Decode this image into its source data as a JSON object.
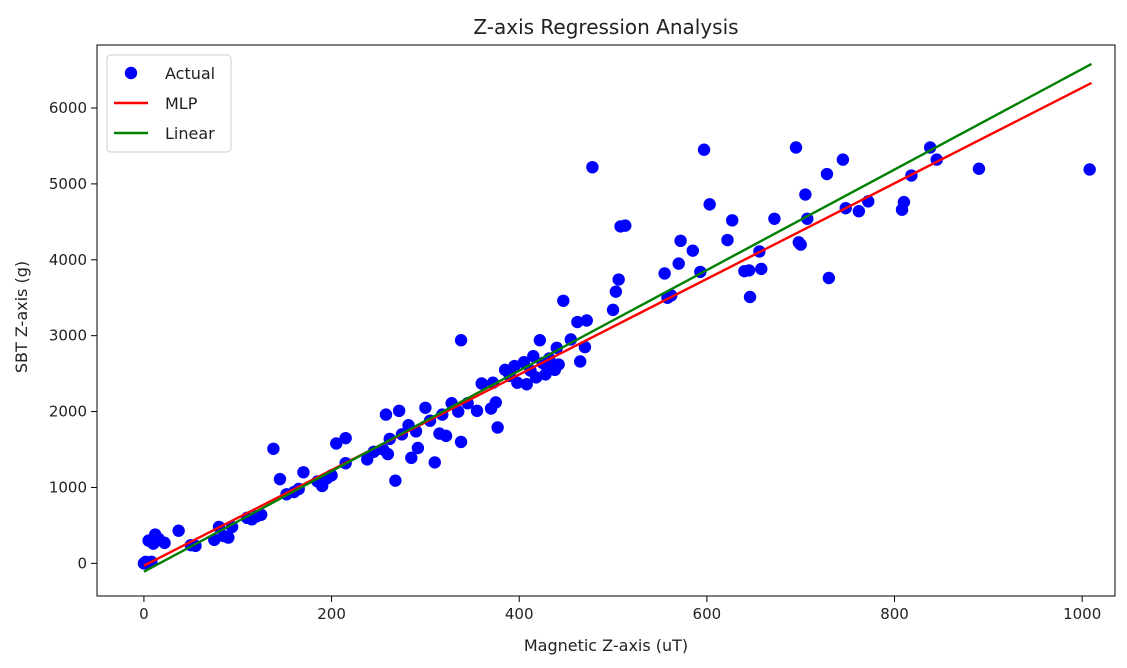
{
  "chart_data": {
    "type": "scatter",
    "title": "Z-axis Regression Analysis",
    "xlabel": "Magnetic Z-axis (uT)",
    "ylabel": "SBT Z-axis (g)",
    "xlim": [
      -50,
      1035
    ],
    "ylim": [
      -430,
      6830
    ],
    "xticks": [
      0,
      200,
      400,
      600,
      800,
      1000
    ],
    "yticks": [
      0,
      1000,
      2000,
      3000,
      4000,
      5000,
      6000
    ],
    "grid": false,
    "legend": "top-left",
    "series": [
      {
        "name": "Actual",
        "kind": "scatter",
        "color": "#0000ff",
        "points": [
          [
            0,
            0
          ],
          [
            2,
            20
          ],
          [
            4,
            10
          ],
          [
            5,
            300
          ],
          [
            8,
            20
          ],
          [
            10,
            260
          ],
          [
            12,
            380
          ],
          [
            16,
            320
          ],
          [
            22,
            270
          ],
          [
            37,
            430
          ],
          [
            50,
            240
          ],
          [
            55,
            230
          ],
          [
            75,
            310
          ],
          [
            80,
            480
          ],
          [
            85,
            360
          ],
          [
            90,
            340
          ],
          [
            94,
            480
          ],
          [
            110,
            600
          ],
          [
            115,
            580
          ],
          [
            120,
            620
          ],
          [
            125,
            640
          ],
          [
            138,
            1510
          ],
          [
            145,
            1110
          ],
          [
            152,
            910
          ],
          [
            160,
            940
          ],
          [
            165,
            980
          ],
          [
            170,
            1200
          ],
          [
            185,
            1080
          ],
          [
            190,
            1020
          ],
          [
            195,
            1120
          ],
          [
            200,
            1160
          ],
          [
            205,
            1580
          ],
          [
            215,
            1650
          ],
          [
            215,
            1320
          ],
          [
            238,
            1370
          ],
          [
            245,
            1470
          ],
          [
            255,
            1500
          ],
          [
            258,
            1960
          ],
          [
            260,
            1440
          ],
          [
            262,
            1640
          ],
          [
            268,
            1090
          ],
          [
            272,
            2010
          ],
          [
            275,
            1700
          ],
          [
            282,
            1820
          ],
          [
            285,
            1390
          ],
          [
            290,
            1740
          ],
          [
            292,
            1520
          ],
          [
            300,
            2050
          ],
          [
            305,
            1880
          ],
          [
            310,
            1330
          ],
          [
            315,
            1710
          ],
          [
            318,
            1960
          ],
          [
            322,
            1680
          ],
          [
            328,
            2110
          ],
          [
            335,
            2000
          ],
          [
            338,
            2940
          ],
          [
            338,
            1600
          ],
          [
            345,
            2110
          ],
          [
            355,
            2010
          ],
          [
            360,
            2370
          ],
          [
            370,
            2040
          ],
          [
            372,
            2380
          ],
          [
            375,
            2120
          ],
          [
            377,
            1790
          ],
          [
            385,
            2550
          ],
          [
            390,
            2470
          ],
          [
            395,
            2600
          ],
          [
            398,
            2380
          ],
          [
            405,
            2650
          ],
          [
            408,
            2360
          ],
          [
            412,
            2540
          ],
          [
            415,
            2730
          ],
          [
            418,
            2450
          ],
          [
            422,
            2940
          ],
          [
            425,
            2640
          ],
          [
            428,
            2490
          ],
          [
            432,
            2700
          ],
          [
            435,
            2600
          ],
          [
            438,
            2550
          ],
          [
            440,
            2840
          ],
          [
            442,
            2620
          ],
          [
            447,
            3460
          ],
          [
            455,
            2950
          ],
          [
            462,
            3180
          ],
          [
            465,
            2660
          ],
          [
            470,
            2850
          ],
          [
            472,
            3200
          ],
          [
            478,
            5220
          ],
          [
            500,
            3340
          ],
          [
            503,
            3580
          ],
          [
            506,
            3740
          ],
          [
            508,
            4440
          ],
          [
            513,
            4450
          ],
          [
            555,
            3820
          ],
          [
            558,
            3500
          ],
          [
            562,
            3530
          ],
          [
            570,
            3950
          ],
          [
            572,
            4250
          ],
          [
            585,
            4120
          ],
          [
            593,
            3840
          ],
          [
            597,
            5450
          ],
          [
            603,
            4730
          ],
          [
            622,
            4260
          ],
          [
            627,
            4520
          ],
          [
            640,
            3850
          ],
          [
            645,
            3860
          ],
          [
            646,
            3510
          ],
          [
            656,
            4110
          ],
          [
            658,
            3880
          ],
          [
            672,
            4540
          ],
          [
            695,
            5480
          ],
          [
            698,
            4230
          ],
          [
            700,
            4200
          ],
          [
            705,
            4860
          ],
          [
            707,
            4540
          ],
          [
            728,
            5130
          ],
          [
            730,
            3760
          ],
          [
            745,
            5320
          ],
          [
            748,
            4680
          ],
          [
            762,
            4640
          ],
          [
            772,
            4770
          ],
          [
            808,
            4660
          ],
          [
            810,
            4760
          ],
          [
            818,
            5110
          ],
          [
            838,
            5480
          ],
          [
            845,
            5320
          ],
          [
            890,
            5200
          ],
          [
            1008,
            5190
          ]
        ]
      },
      {
        "name": "MLP",
        "kind": "line",
        "color": "#ff0000",
        "points": [
          [
            0,
            -30
          ],
          [
            1010,
            6330
          ]
        ]
      },
      {
        "name": "Linear",
        "kind": "line",
        "color": "#008000",
        "points": [
          [
            0,
            -110
          ],
          [
            1010,
            6580
          ]
        ]
      }
    ]
  }
}
